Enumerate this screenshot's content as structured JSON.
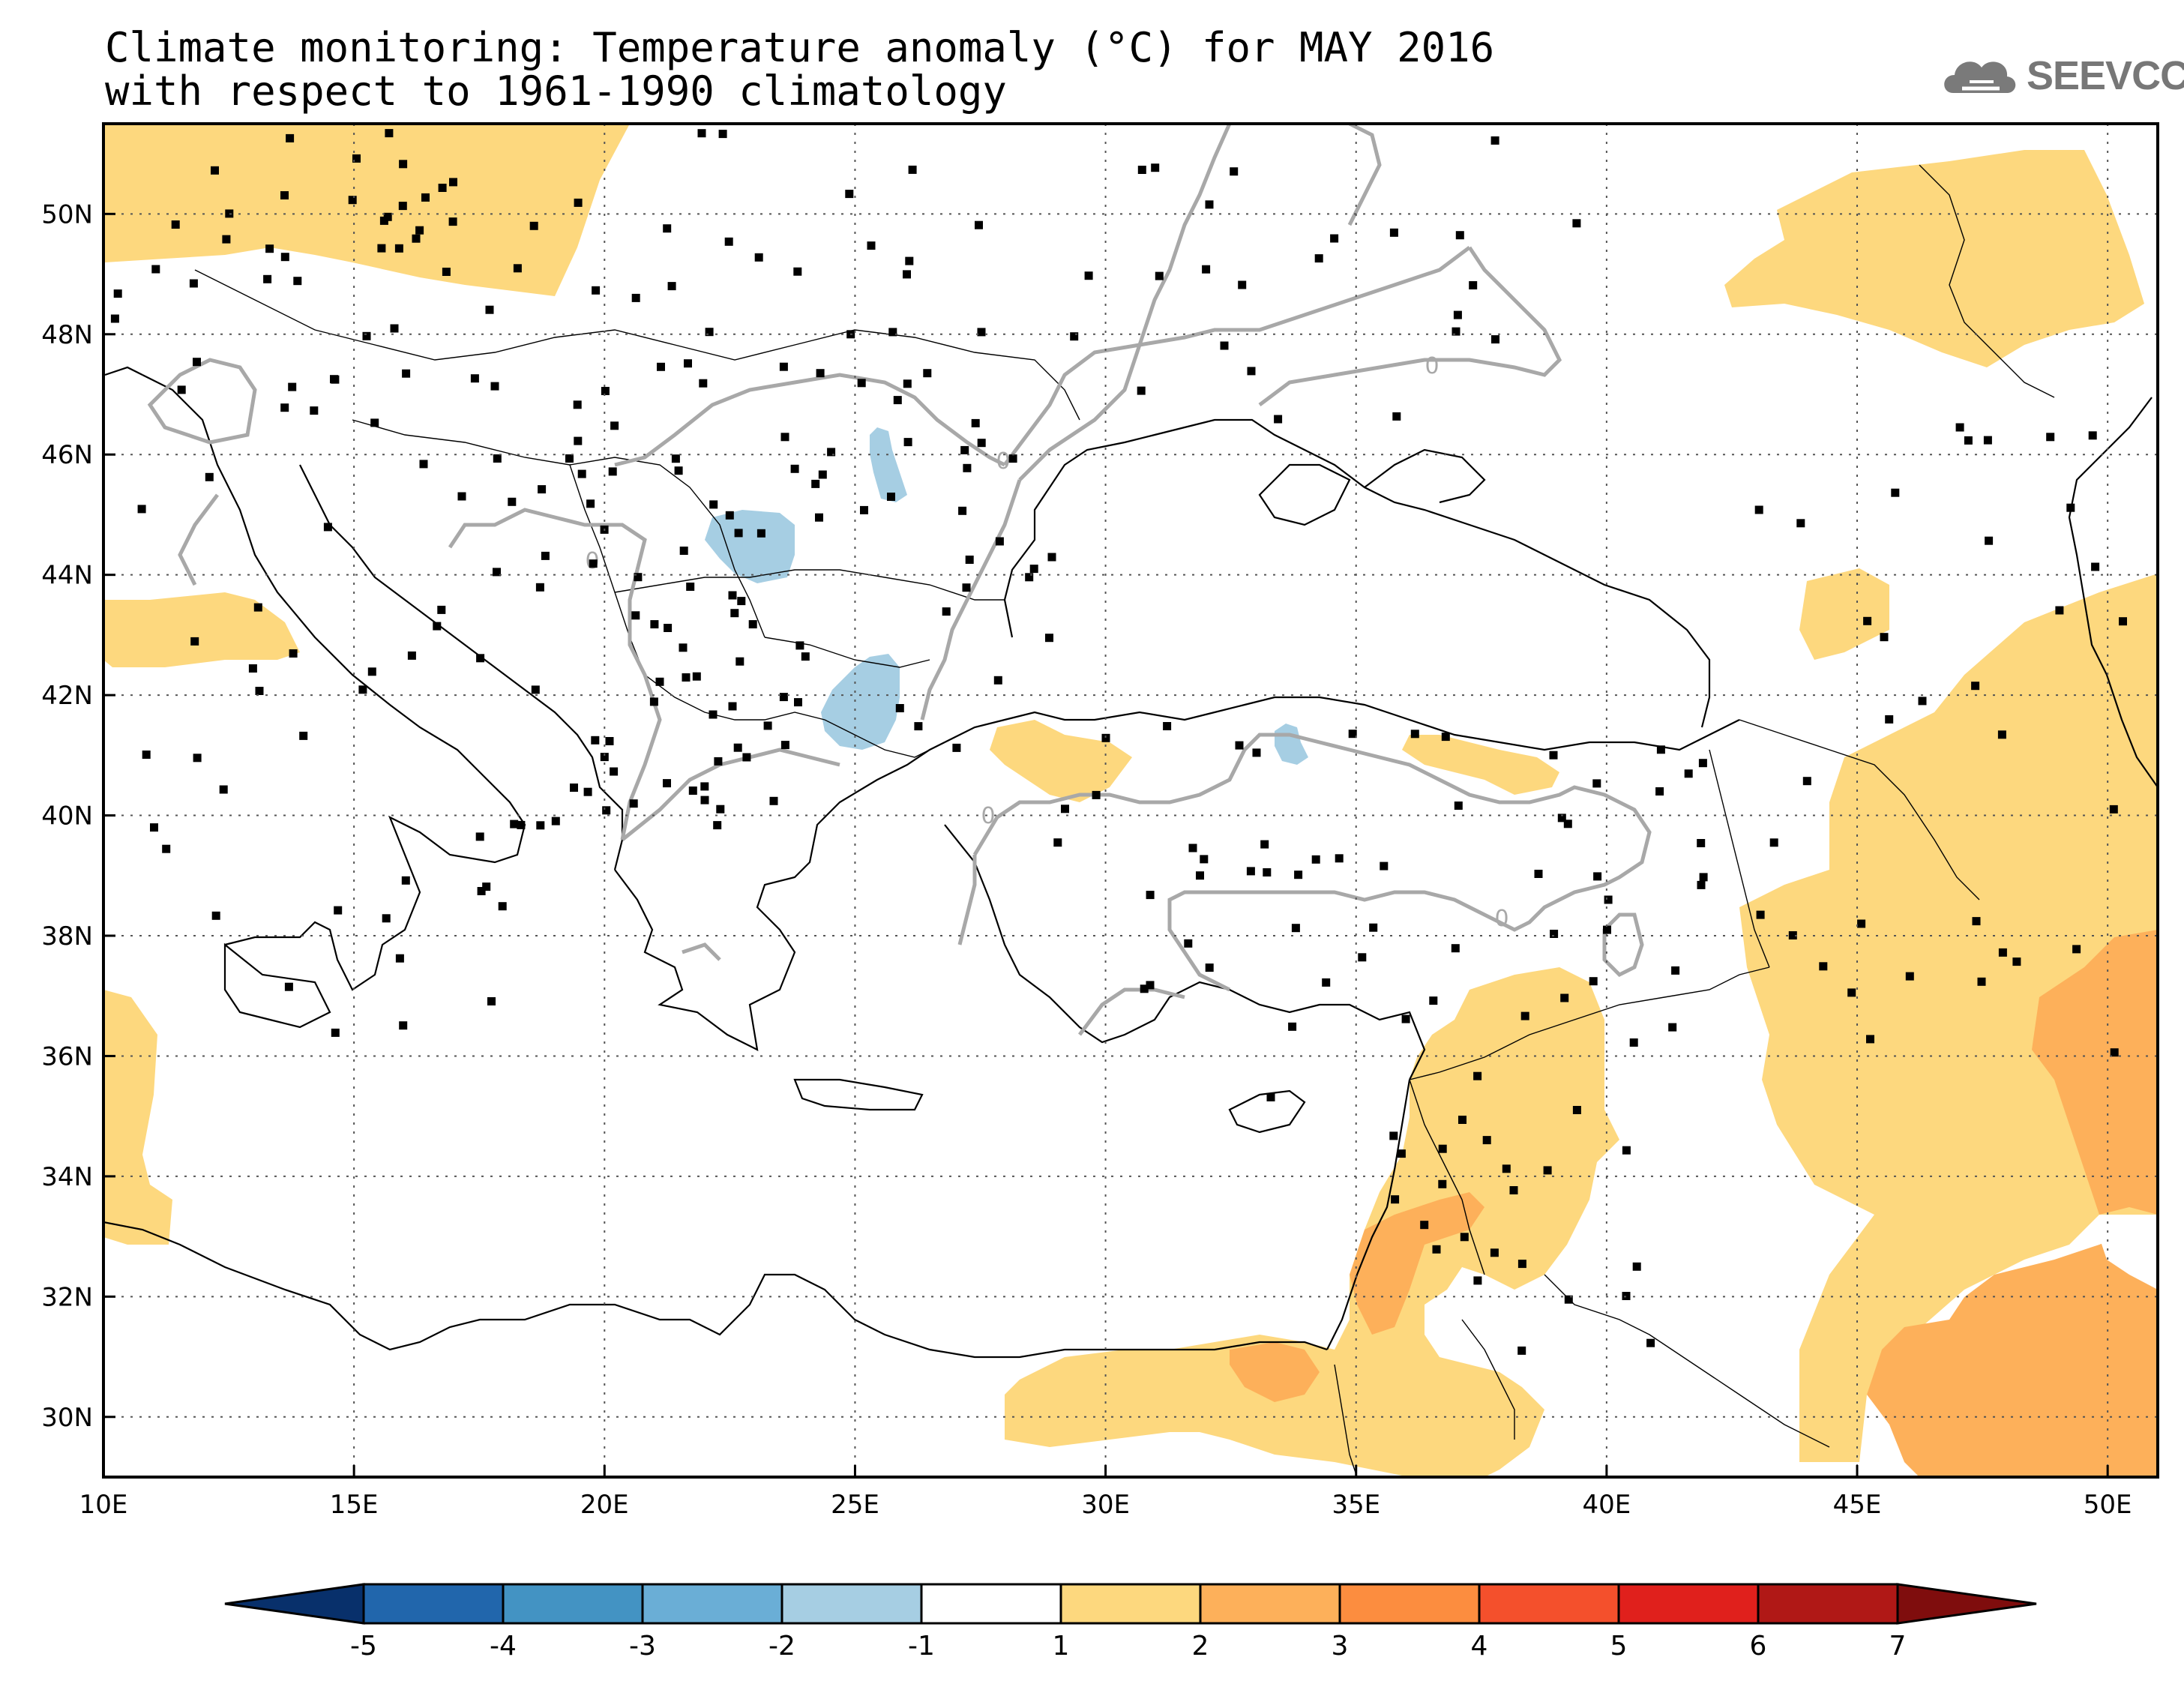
{
  "title": {
    "line1": "Climate monitoring: Temperature anomaly (°C) for MAY 2016",
    "line2": "with respect to 1961-1990 climatology"
  },
  "logo": {
    "text": "SEEVCCC",
    "icon": "cloud-icon",
    "color": "#777777"
  },
  "map": {
    "lon_range": [
      10,
      51
    ],
    "lat_range": [
      29,
      51.5
    ],
    "lon_ticks": [
      "10E",
      "15E",
      "20E",
      "25E",
      "30E",
      "35E",
      "40E",
      "45E",
      "50E"
    ],
    "lat_ticks": [
      "30N",
      "32N",
      "34N",
      "36N",
      "38N",
      "40N",
      "42N",
      "44N",
      "46N",
      "48N",
      "50N"
    ],
    "grid": "dotted",
    "contour_label": "0",
    "contour_color": "#a8a8a8"
  },
  "colorbar": {
    "ticks": [
      "-5",
      "-4",
      "-3",
      "-2",
      "-1",
      "1",
      "2",
      "3",
      "4",
      "5",
      "6",
      "7"
    ],
    "colors": [
      "#08306b",
      "#2166ac",
      "#4393c3",
      "#6aaed6",
      "#a6cee3",
      "#ffffff",
      "#fdd87e",
      "#fdb05a",
      "#fc8d3f",
      "#f4502c",
      "#e0201c",
      "#b01816",
      "#7f0d0d"
    ]
  }
}
